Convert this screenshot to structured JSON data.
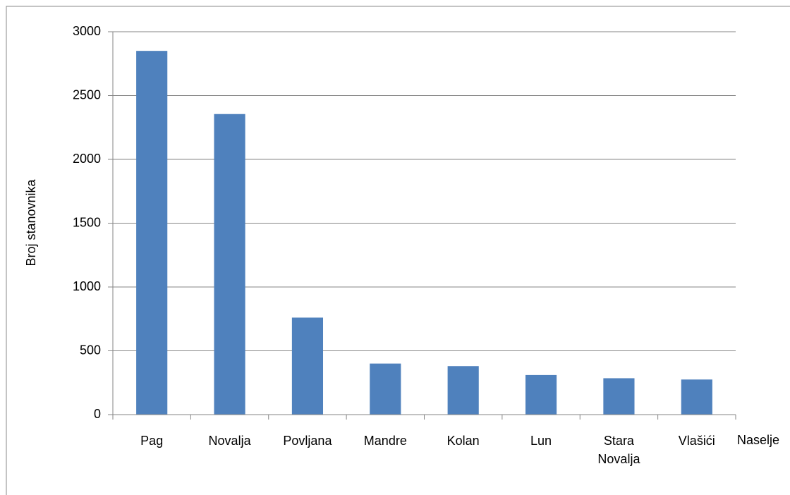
{
  "chart_data": {
    "type": "bar",
    "x_label": "Naselje",
    "y_label": "Broj stanovnika",
    "categories": [
      "Pag",
      "Novalja",
      "Povljana",
      "Mandre",
      "Kolan",
      "Lun",
      "Stara Novalja",
      "Vlašići"
    ],
    "values": [
      2850,
      2355,
      760,
      400,
      380,
      310,
      285,
      275
    ],
    "color": "#4f81bd",
    "ylim": [
      0,
      3000
    ],
    "yticks": [
      0,
      500,
      1000,
      1500,
      2000,
      2500,
      3000
    ],
    "grid": true
  }
}
